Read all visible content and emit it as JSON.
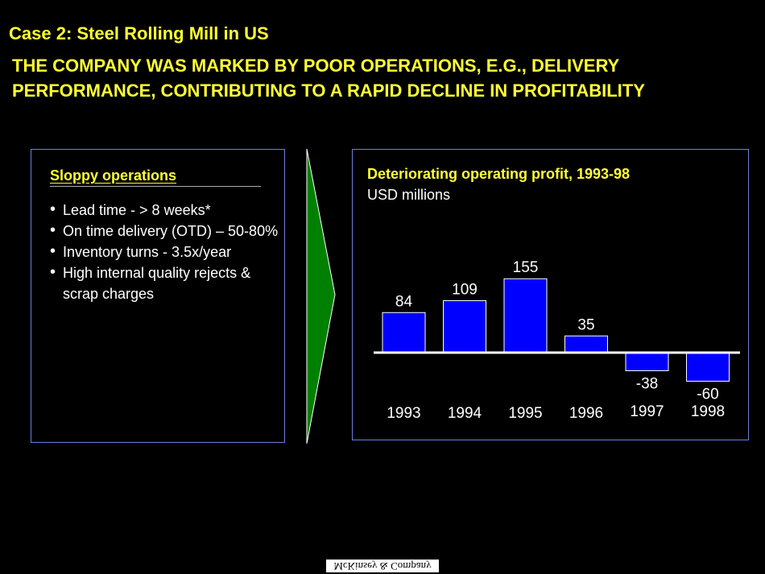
{
  "header": {
    "case_title": "Case 2: Steel Rolling Mill in US",
    "headline": "THE COMPANY WAS MARKED BY POOR OPERATIONS, E.G., DELIVERY PERFORMANCE, CONTRIBUTING TO A RAPID DECLINE IN PROFITABILITY"
  },
  "left_panel": {
    "heading": "Sloppy operations",
    "bullets": [
      "Lead time - > 8 weeks*",
      "On time delivery (OTD) – 50-80%",
      "Inventory turns - 3.5x/year",
      "High internal quality rejects & scrap charges"
    ]
  },
  "colors": {
    "title_yellow": "#ffff33",
    "bar_blue": "#0000ff",
    "arrow_green": "#008000",
    "border_blue": "#6b7fe0"
  },
  "chart_data": {
    "type": "bar",
    "title": "Deteriorating operating profit, 1993-98",
    "subtitle": "USD millions",
    "categories": [
      "1993",
      "1994",
      "1995",
      "1996",
      "1997",
      "1998"
    ],
    "values": [
      84,
      109,
      155,
      35,
      -38,
      -60
    ],
    "xlabel": "",
    "ylabel": "",
    "ylim": [
      -70,
      170
    ],
    "grid": false,
    "legend": "none"
  },
  "footer": {
    "logo_text": "McKinsey & Company"
  }
}
